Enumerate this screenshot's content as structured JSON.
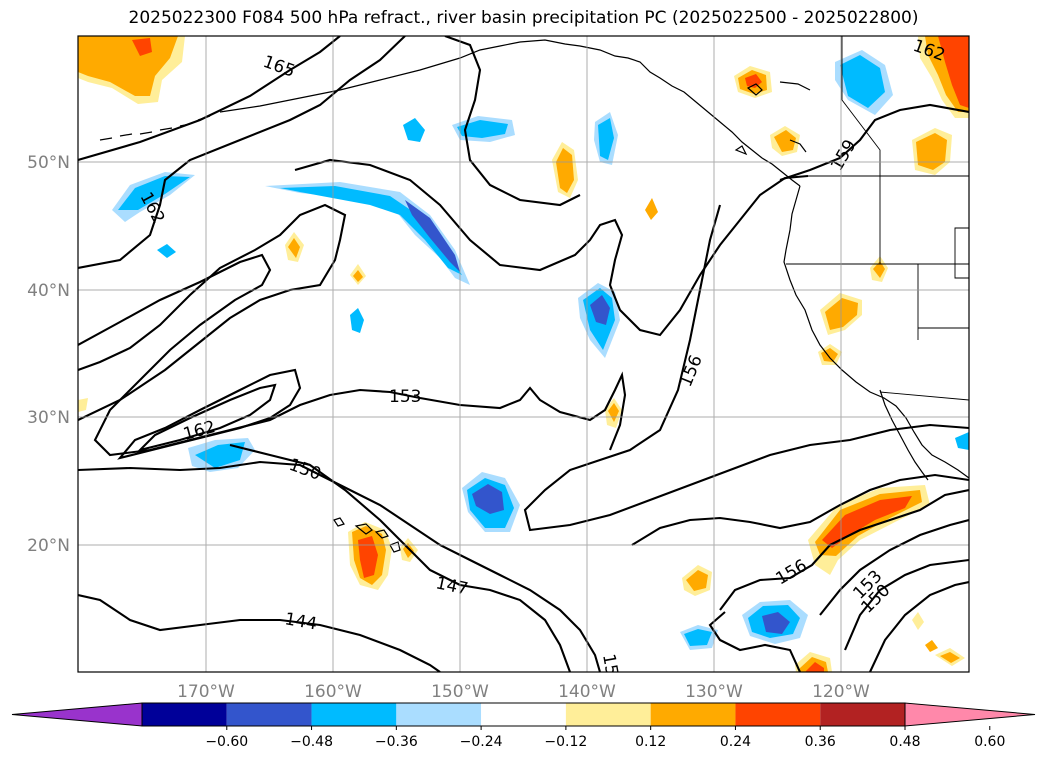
{
  "title": "2025022300 F084 500 hPa refract., river basin precipitation PC (2025022500 - 2025022800)",
  "latitude_labels": [
    "50°N",
    "40°N",
    "30°N",
    "20°N"
  ],
  "longitude_labels": [
    "170°W",
    "160°W",
    "150°W",
    "140°W",
    "130°W",
    "120°W"
  ],
  "contour_labels": [
    "165",
    "162",
    "162",
    "162",
    "159",
    "156",
    "156",
    "153",
    "153",
    "150",
    "150",
    "147",
    "144",
    "15"
  ],
  "colorbar": {
    "tick_labels": [
      "−0.60",
      "−0.48",
      "−0.36",
      "−0.24",
      "−0.12",
      "0.12",
      "0.24",
      "0.36",
      "0.48",
      "0.60"
    ],
    "colors": [
      "#9933cc",
      "#000099",
      "#3355cc",
      "#00bbff",
      "#aaddff",
      "#ffffff",
      "#ffee99",
      "#ffaa00",
      "#ff4400",
      "#b22222",
      "#ff88aa"
    ]
  },
  "fill_colors": {
    "neg_light": "#aaddff",
    "neg_mid": "#00bbff",
    "neg_dark": "#3355cc",
    "pos_light": "#ffee99",
    "pos_mid": "#ffaa00",
    "pos_dark": "#ff4400"
  }
}
